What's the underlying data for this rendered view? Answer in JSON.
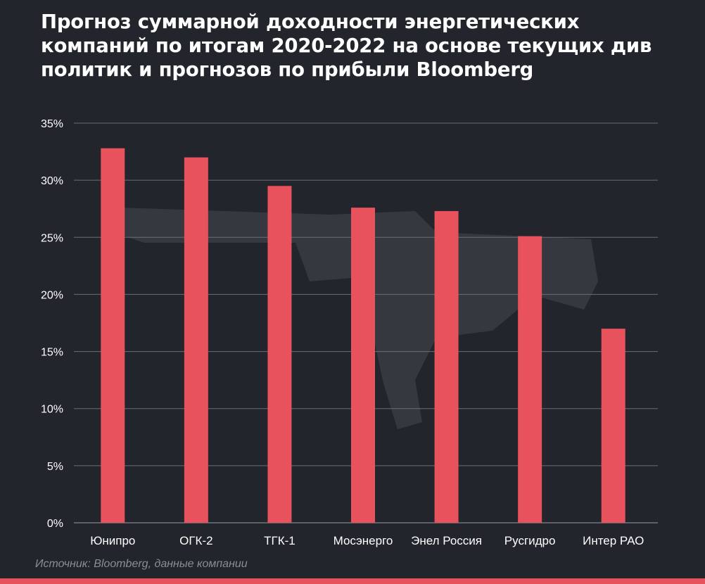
{
  "title": "Прогноз суммарной доходности энергетических компаний по итогам 2020-2022 на основе текущих див политик и прогнозов по прибыли Bloomberg",
  "source": "Источник: Bloomberg, данные компании",
  "colors": {
    "background": "#22252c",
    "bar": "#e8525c",
    "grid": "#6b6e75",
    "bottom_bar": "#e8525c"
  },
  "chart_data": {
    "type": "bar",
    "categories": [
      "Юнипро",
      "ОГК-2",
      "ТГК-1",
      "Мосэнерго",
      "Энел Россия",
      "Русгидро",
      "Интер РАО"
    ],
    "values": [
      32.8,
      32.0,
      29.5,
      27.6,
      27.3,
      25.1,
      17.0
    ],
    "y_ticks": [
      "0%",
      "5%",
      "10%",
      "15%",
      "20%",
      "25%",
      "30%",
      "35%"
    ],
    "ylim": [
      0,
      35
    ],
    "grid": true,
    "legend": "none"
  }
}
